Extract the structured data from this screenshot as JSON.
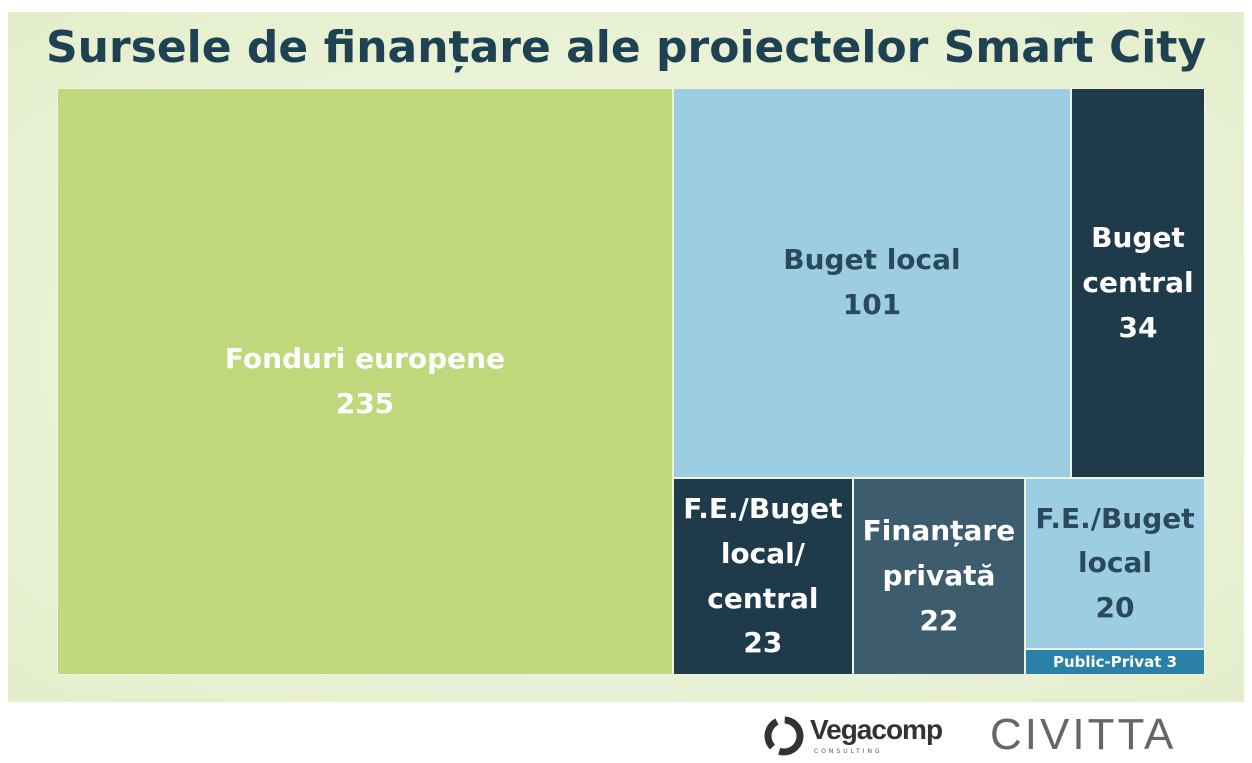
{
  "chart_data": {
    "type": "treemap",
    "title": "Sursele de finanțare ale proiectelor Smart City",
    "categories": [
      "Fonduri europene",
      "Buget local",
      "Buget central",
      "F.E./Buget local/ central",
      "Finanțare privată",
      "F.E./Buget local",
      "Public-Privat"
    ],
    "values": [
      235,
      101,
      34,
      23,
      22,
      20,
      3
    ],
    "colors": [
      "#bfd87c",
      "#9dcde3",
      "#1f3a4b",
      "#1f3a4b",
      "#3d5c6e",
      "#9dcde3",
      "#2b80a8"
    ],
    "text_colors": [
      "#ffffff",
      "#2a4a5c",
      "#ffffff",
      "#ffffff",
      "#ffffff",
      "#2a4a5c",
      "#ffffff"
    ]
  },
  "logos": [
    "Vegacomp",
    "CONSULTING",
    "CIVITTA"
  ]
}
